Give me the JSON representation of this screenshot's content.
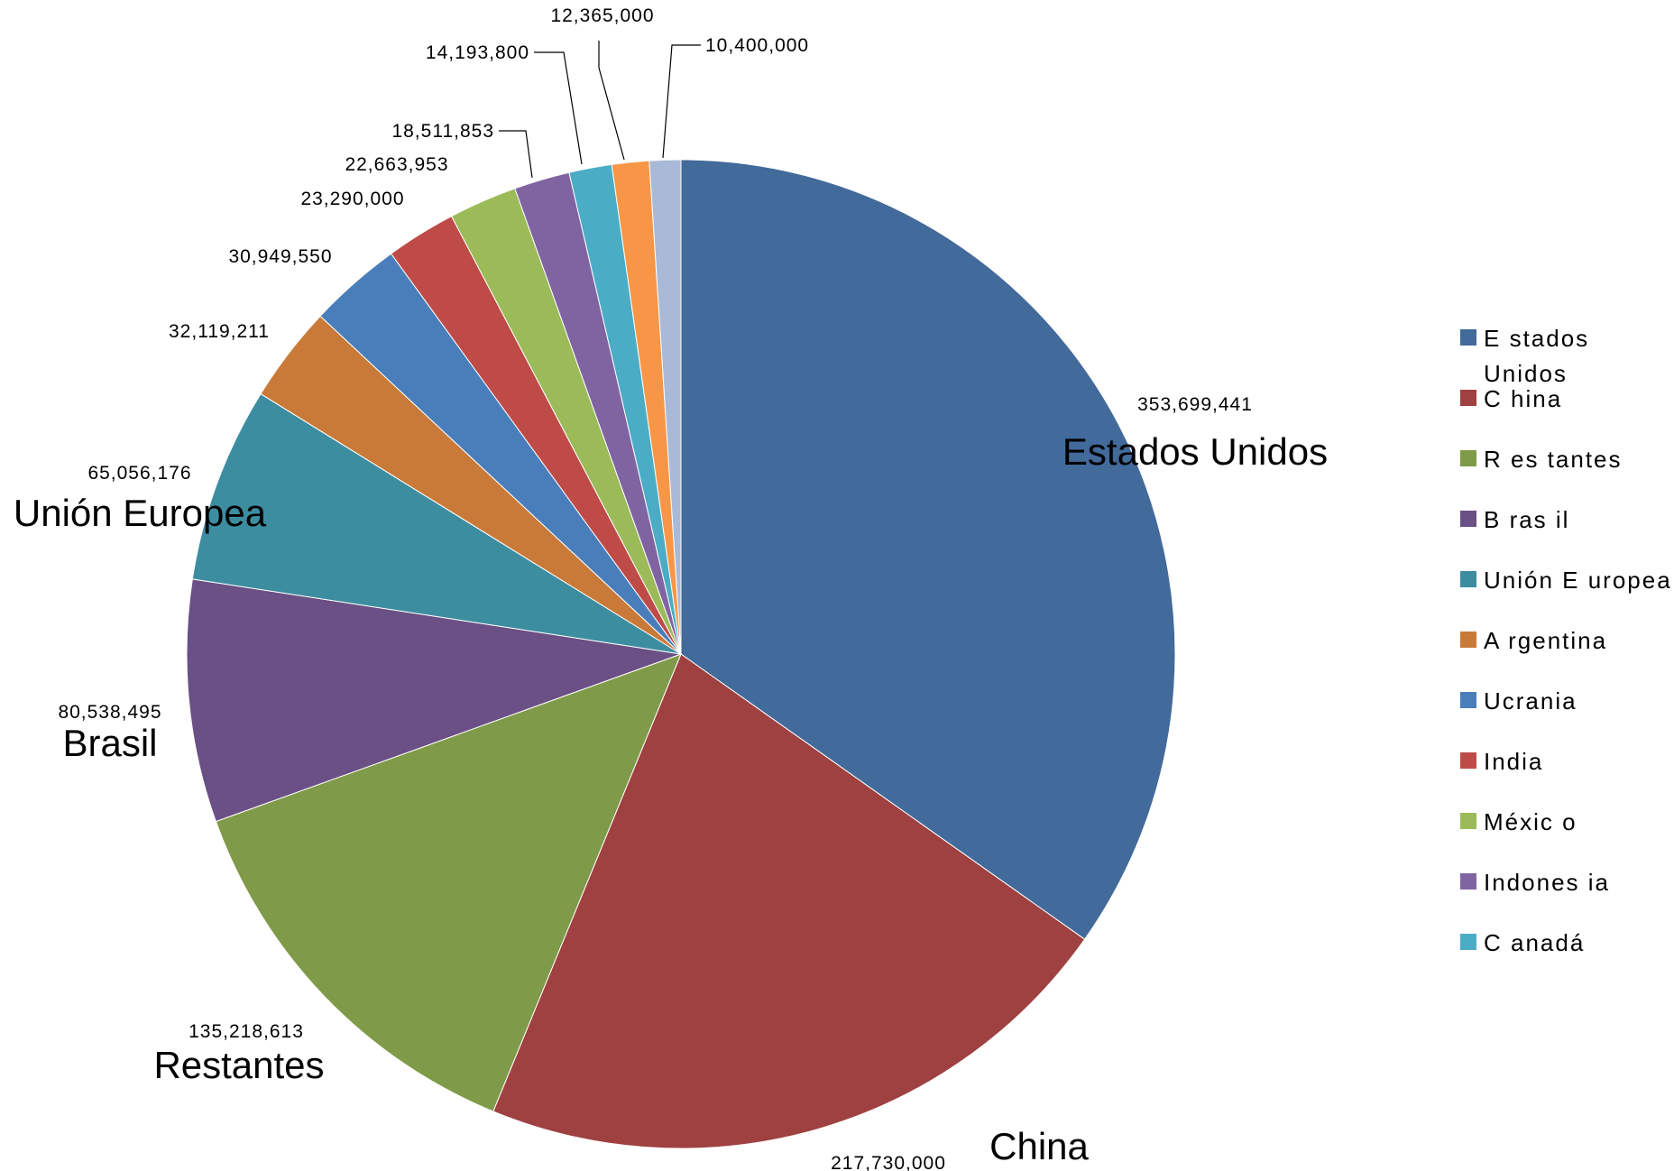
{
  "chart_data": {
    "type": "pie",
    "title": "",
    "slices": [
      {
        "name": "Estados Unidos",
        "value": 353699441,
        "value_label": "353,699,441",
        "color": "#426A9A",
        "slice_label": "Estados Unidos"
      },
      {
        "name": "China",
        "value": 217730000,
        "value_label": "217,730,000",
        "color": "#9E4140",
        "slice_label": "China"
      },
      {
        "name": "Restantes",
        "value": 135218613,
        "value_label": "135,218,613",
        "color": "#7F9A48",
        "slice_label": "Restantes"
      },
      {
        "name": "Brasil",
        "value": 80538495,
        "value_label": "80,538,495",
        "color": "#6A5085",
        "slice_label": "Brasil"
      },
      {
        "name": "Unión Europea",
        "value": 65056176,
        "value_label": "65,056,176",
        "color": "#3D8DA1",
        "slice_label": "Unión Europea"
      },
      {
        "name": "Argentina",
        "value": 32119211,
        "value_label": "32,119,211",
        "color": "#C97A38",
        "slice_label": ""
      },
      {
        "name": "Ucrania",
        "value": 30949550,
        "value_label": "30,949,550",
        "color": "#4A7EBB",
        "slice_label": ""
      },
      {
        "name": "India",
        "value": 23290000,
        "value_label": "23,290,000",
        "color": "#BE4B48",
        "slice_label": ""
      },
      {
        "name": "México",
        "value": 22663953,
        "value_label": "22,663,953",
        "color": "#9BBB59",
        "slice_label": ""
      },
      {
        "name": "Indonesia",
        "value": 18511853,
        "value_label": "18,511,853",
        "color": "#8064A2",
        "slice_label": ""
      },
      {
        "name": "Canadá",
        "value": 14193800,
        "value_label": "14,193,800",
        "color": "#4BACC6",
        "slice_label": ""
      },
      {
        "name": "",
        "value": 12365000,
        "value_label": "12,365,000",
        "color": "#F79646",
        "slice_label": ""
      },
      {
        "name": "",
        "value": 10400000,
        "value_label": "10,400,000",
        "color": "#A9BAD8",
        "slice_label": ""
      }
    ],
    "legend": {
      "placement": "right",
      "entries": [
        {
          "label": "E stados",
          "label2": "Unidos",
          "color": "#426A9A"
        },
        {
          "label": "C hina",
          "color": "#9E4140"
        },
        {
          "label": "R es tantes",
          "color": "#7F9A48"
        },
        {
          "label": "B ras il",
          "color": "#6A5085"
        },
        {
          "label": "Unión E uropea",
          "color": "#3D8DA1"
        },
        {
          "label": "A rgentina",
          "color": "#C97A38"
        },
        {
          "label": "Ucrania",
          "color": "#4A7EBB"
        },
        {
          "label": "India",
          "color": "#BE4B48"
        },
        {
          "label": "Méxic o",
          "color": "#9BBB59"
        },
        {
          "label": "Indones ia",
          "color": "#8064A2"
        },
        {
          "label": "C anadá",
          "color": "#4BACC6"
        }
      ]
    }
  }
}
